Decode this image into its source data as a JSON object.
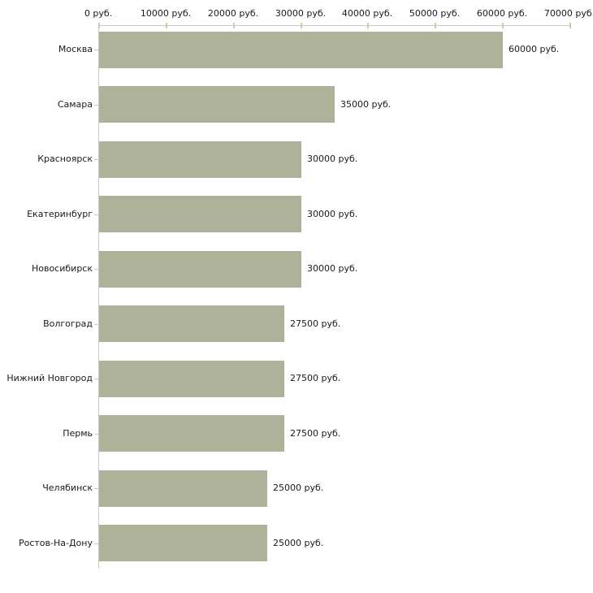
{
  "chart_data": {
    "type": "bar",
    "orientation": "horizontal",
    "title": "",
    "categories": [
      "Москва",
      "Самара",
      "Красноярск",
      "Екатеринбург",
      "Новосибирск",
      "Волгоград",
      "Нижний Новгород",
      "Пермь",
      "Челябинск",
      "Ростов-На-Дону"
    ],
    "values": [
      60000,
      35000,
      30000,
      30000,
      30000,
      27500,
      27500,
      27500,
      25000,
      25000
    ],
    "value_labels": [
      "60000 руб.",
      "35000 руб.",
      "30000 руб.",
      "30000 руб.",
      "30000 руб.",
      "27500 руб.",
      "27500 руб.",
      "27500 руб.",
      "25000 руб.",
      "25000 руб."
    ],
    "unit": "руб.",
    "x_axis": {
      "position": "top",
      "min": 0,
      "max": 70000,
      "tick_interval": 10000,
      "tick_values": [
        0,
        10000,
        20000,
        30000,
        40000,
        50000,
        60000,
        70000
      ],
      "tick_labels": [
        "0 руб.",
        "10000 руб.",
        "20000 руб.",
        "30000 руб.",
        "40000 руб.",
        "50000 руб.",
        "60000 руб.",
        "70000 руб."
      ]
    },
    "grid": false,
    "legend": false,
    "colors": {
      "bar": "#adb299",
      "axis_line": "#c8c8c8",
      "tick": "#cdcd9e",
      "text": "#1a1a1a",
      "background": "#ffffff"
    }
  }
}
